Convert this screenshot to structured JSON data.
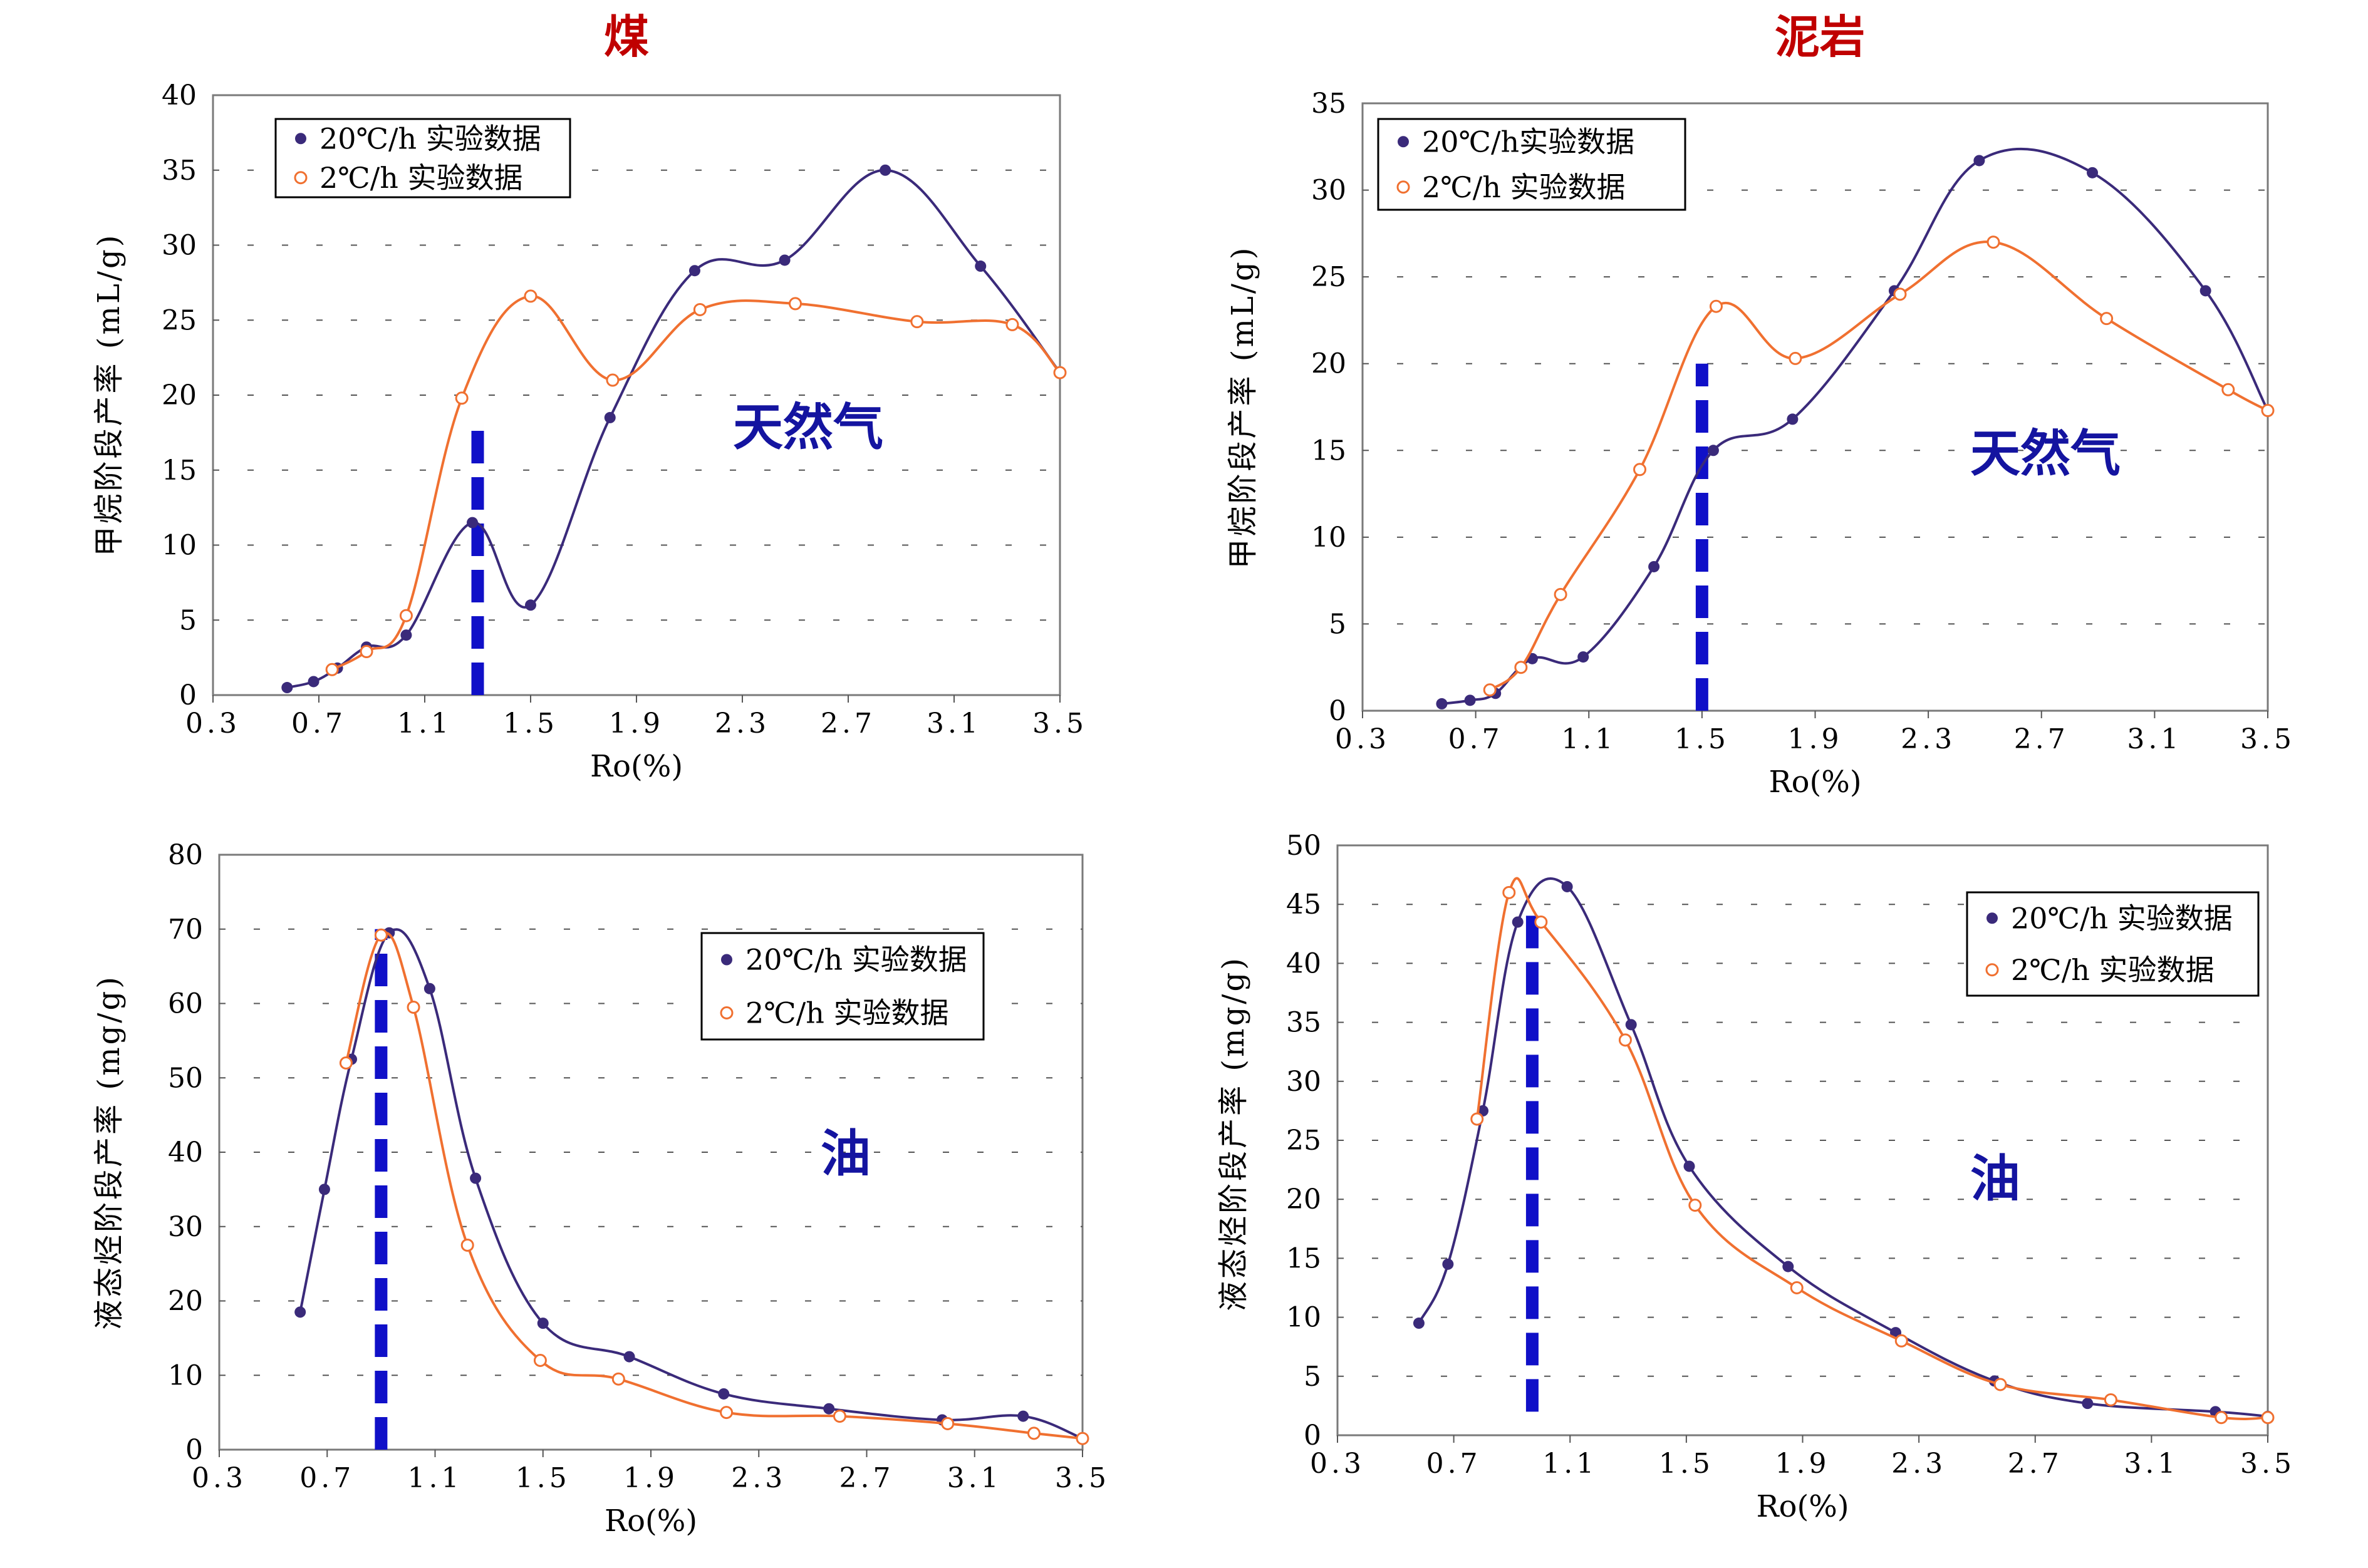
{
  "titles": {
    "left": "煤",
    "right": "泥岩"
  },
  "legend": {
    "fast": "20℃/h 实验数据",
    "slow": "2℃/h 实验数据"
  },
  "colors": {
    "fast": "#3a2a7a",
    "slow": "#f07030",
    "marker": "#1010c8"
  },
  "chart_data": [
    {
      "type": "line",
      "title": "煤",
      "ylabel": "甲烷阶段产率 (mL/g)",
      "xlabel": "Ro(%)",
      "annotation": "天然气",
      "xlim": [
        0.3,
        3.5
      ],
      "ylim": [
        0,
        40
      ],
      "xticks": [
        "0.3",
        "0.7",
        "1.1",
        "1.5",
        "1.9",
        "2.3",
        "2.7",
        "3.1",
        "3.5"
      ],
      "yticks": [
        "0",
        "5",
        "10",
        "15",
        "20",
        "25",
        "30",
        "35",
        "40"
      ],
      "marker_x": 1.3,
      "marker_yrange": [
        0,
        18
      ],
      "series": [
        {
          "name": "20℃/h 实验数据",
          "x": [
            0.58,
            0.68,
            0.77,
            0.88,
            1.03,
            1.28,
            1.5,
            1.8,
            2.12,
            2.46,
            2.84,
            3.2,
            3.5
          ],
          "y": [
            0.5,
            0.9,
            1.8,
            3.2,
            4.0,
            11.5,
            6.0,
            18.5,
            28.3,
            29.0,
            35.0,
            28.6,
            21.5
          ]
        },
        {
          "name": "2℃/h 实验数据",
          "x": [
            0.75,
            0.88,
            1.03,
            1.24,
            1.5,
            1.81,
            2.14,
            2.5,
            2.96,
            3.32,
            3.5
          ],
          "y": [
            1.7,
            2.9,
            5.3,
            19.8,
            26.6,
            21.0,
            25.7,
            26.1,
            24.9,
            24.7,
            21.5
          ]
        }
      ]
    },
    {
      "type": "line",
      "title": "泥岩",
      "ylabel": "甲烷阶段产率 (mL/g)",
      "xlabel": "Ro(%)",
      "annotation": "天然气",
      "xlim": [
        0.3,
        3.5
      ],
      "ylim": [
        0,
        35
      ],
      "xticks": [
        "0.3",
        "0.7",
        "1.1",
        "1.5",
        "1.9",
        "2.3",
        "2.7",
        "3.1",
        "3.5"
      ],
      "yticks": [
        "0",
        "5",
        "10",
        "15",
        "20",
        "25",
        "30",
        "35"
      ],
      "marker_x": 1.5,
      "marker_yrange": [
        0,
        20
      ],
      "series": [
        {
          "name": "20℃/h实验数据",
          "x": [
            0.58,
            0.68,
            0.77,
            0.9,
            1.08,
            1.33,
            1.54,
            1.82,
            2.18,
            2.48,
            2.88,
            3.28,
            3.5
          ],
          "y": [
            0.4,
            0.6,
            1.0,
            3.0,
            3.1,
            8.3,
            15.0,
            16.8,
            24.2,
            31.7,
            31.0,
            24.2,
            17.3
          ]
        },
        {
          "name": "2℃/h 实验数据",
          "x": [
            0.75,
            0.86,
            1.0,
            1.28,
            1.55,
            1.83,
            2.2,
            2.53,
            2.93,
            3.36,
            3.5
          ],
          "y": [
            1.2,
            2.5,
            6.7,
            13.9,
            23.3,
            20.3,
            24.0,
            27.0,
            22.6,
            18.5,
            17.3
          ]
        }
      ]
    },
    {
      "type": "line",
      "title": "煤",
      "ylabel": "液态烃阶段产率 (mg/g)",
      "xlabel": "Ro(%)",
      "annotation": "油",
      "xlim": [
        0.3,
        3.5
      ],
      "ylim": [
        0,
        80
      ],
      "xticks": [
        "0.3",
        "0.7",
        "1.1",
        "1.5",
        "1.9",
        "2.3",
        "2.7",
        "3.1",
        "3.5"
      ],
      "yticks": [
        "0",
        "10",
        "20",
        "30",
        "40",
        "50",
        "60",
        "70",
        "80"
      ],
      "marker_x": 0.9,
      "marker_yrange": [
        0,
        70
      ],
      "series": [
        {
          "name": "20℃/h 实验数据",
          "x": [
            0.6,
            0.69,
            0.79,
            0.93,
            1.08,
            1.25,
            1.5,
            1.82,
            2.17,
            2.56,
            2.98,
            3.28,
            3.5
          ],
          "y": [
            18.5,
            35.0,
            52.5,
            69.5,
            62.0,
            36.5,
            17.0,
            12.5,
            7.5,
            5.5,
            4.0,
            4.5,
            1.5
          ]
        },
        {
          "name": "2℃/h 实验数据",
          "x": [
            0.77,
            0.9,
            1.02,
            1.22,
            1.49,
            1.78,
            2.18,
            2.6,
            3.0,
            3.32,
            3.5
          ],
          "y": [
            52.0,
            69.2,
            59.5,
            27.5,
            12.0,
            9.5,
            5.0,
            4.5,
            3.5,
            2.2,
            1.5
          ]
        }
      ]
    },
    {
      "type": "line",
      "title": "泥岩",
      "ylabel": "液态烃阶段产率 (mg/g)",
      "xlabel": "Ro(%)",
      "annotation": "油",
      "xlim": [
        0.3,
        3.5
      ],
      "ylim": [
        0,
        50
      ],
      "xticks": [
        "0.3",
        "0.7",
        "1.1",
        "1.5",
        "1.9",
        "2.3",
        "2.7",
        "3.1",
        "3.5"
      ],
      "yticks": [
        "0",
        "5",
        "10",
        "15",
        "20",
        "25",
        "30",
        "35",
        "40",
        "45",
        "50"
      ],
      "marker_x": 0.97,
      "marker_yrange": [
        2,
        45
      ],
      "series": [
        {
          "name": "20℃/h 实验数据",
          "x": [
            0.58,
            0.68,
            0.8,
            0.92,
            1.09,
            1.31,
            1.51,
            1.85,
            2.22,
            2.56,
            2.88,
            3.32,
            3.5
          ],
          "y": [
            9.5,
            14.5,
            27.5,
            43.5,
            46.5,
            34.8,
            22.8,
            14.3,
            8.7,
            4.6,
            2.7,
            2.0,
            1.6
          ]
        },
        {
          "name": "2℃/h 实验数据",
          "x": [
            0.78,
            0.89,
            1.0,
            1.29,
            1.53,
            1.88,
            2.24,
            2.58,
            2.96,
            3.34,
            3.5
          ],
          "y": [
            26.8,
            46.0,
            43.5,
            33.5,
            19.5,
            12.5,
            8.0,
            4.3,
            3.0,
            1.5,
            1.5
          ]
        }
      ]
    }
  ]
}
